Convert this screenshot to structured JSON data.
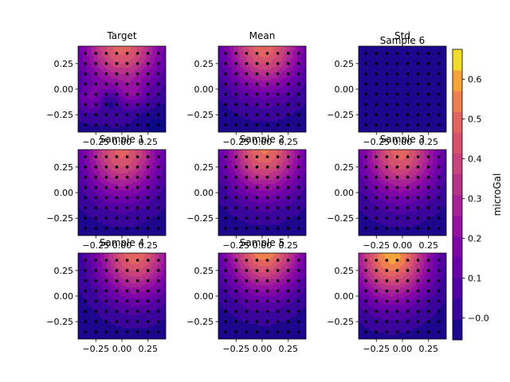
{
  "chart_data": {
    "type": "heatmap",
    "colormap": "plasma",
    "panels": [
      {
        "title": "Target",
        "kind": "target"
      },
      {
        "title": "Mean",
        "kind": "smooth",
        "peak": [
          0.02,
          0.45
        ],
        "amp": 0.55
      },
      {
        "title": "Std",
        "title2": "Sample 6",
        "kind": "flat"
      },
      {
        "title": "Sample 1",
        "kind": "smooth",
        "peak": [
          0.0,
          0.42
        ],
        "amp": 0.52
      },
      {
        "title": "Sample 2",
        "kind": "smooth",
        "peak": [
          0.02,
          0.45
        ],
        "amp": 0.57
      },
      {
        "title": "Sample 3",
        "kind": "smooth",
        "peak": [
          -0.02,
          0.42
        ],
        "amp": 0.53
      },
      {
        "title": "Sample 4",
        "kind": "smooth",
        "peak": [
          0.12,
          0.45
        ],
        "amp": 0.55
      },
      {
        "title": "Sample 5",
        "kind": "smooth",
        "peak": [
          0.02,
          0.5
        ],
        "amp": 0.62
      },
      {
        "title": "",
        "kind": "smooth",
        "peak": [
          -0.1,
          0.42
        ],
        "amp": 0.64
      }
    ],
    "axis_range": {
      "x": [
        -0.42,
        0.42
      ],
      "y": [
        -0.42,
        0.42
      ]
    },
    "x_ticks": [
      -0.25,
      0.0,
      0.25
    ],
    "y_ticks": [
      -0.25,
      0.0,
      0.25
    ],
    "x_tick_labels": [
      "−0.25",
      "0.00",
      "0.25"
    ],
    "y_tick_labels": [
      "−0.25",
      "0.00",
      "0.25"
    ],
    "stations": [
      -0.35,
      -0.25,
      -0.15,
      -0.05,
      0.05,
      0.15,
      0.25,
      0.35
    ],
    "colorbar": {
      "label": "microGal",
      "range": [
        -0.055,
        0.675
      ],
      "ticks": [
        -0.0,
        0.1,
        0.2,
        0.3,
        0.4,
        0.5,
        0.6
      ],
      "tick_labels": [
        "−0.0",
        "0.1",
        "0.2",
        "0.3",
        "0.4",
        "0.5",
        "0.6"
      ]
    }
  }
}
